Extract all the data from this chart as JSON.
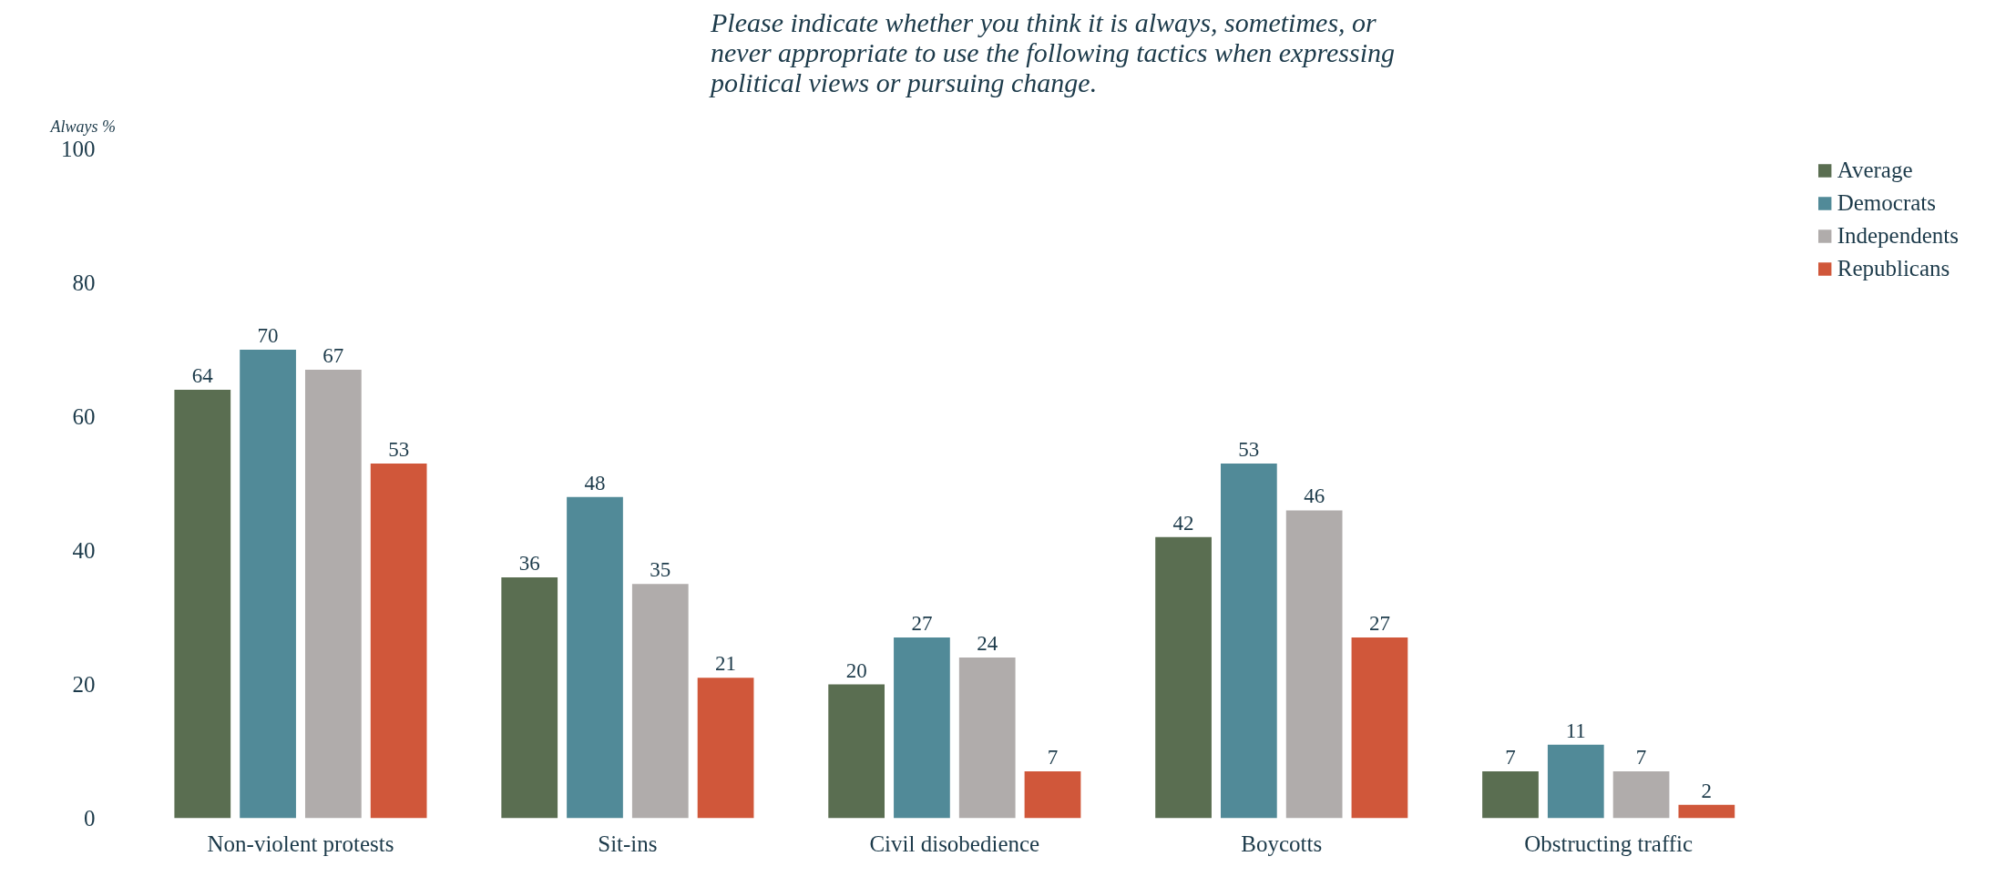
{
  "chart_data": {
    "type": "bar",
    "title": "Please indicate whether you think it is always, sometimes, or never appropriate to use the following tactics when expressing political views or pursuing change.",
    "ylabel": "Always %",
    "categories": [
      "Non-violent protests",
      "Sit-ins",
      "Civil disobedience",
      "Boycotts",
      "Obstructing traffic"
    ],
    "series": [
      {
        "name": "Average",
        "color": "#5a6e51",
        "values": [
          64,
          36,
          20,
          42,
          7
        ]
      },
      {
        "name": "Democrats",
        "color": "#518a98",
        "values": [
          70,
          48,
          27,
          53,
          11
        ]
      },
      {
        "name": "Independents",
        "color": "#b0acab",
        "values": [
          67,
          35,
          24,
          46,
          7
        ]
      },
      {
        "name": "Republicans",
        "color": "#d0573a",
        "values": [
          53,
          21,
          7,
          27,
          2
        ]
      }
    ],
    "ylim": [
      0,
      100
    ],
    "yticks": [
      0,
      20,
      40,
      60,
      80,
      100
    ],
    "grid": false,
    "legend": "top right",
    "data_labels": true
  }
}
